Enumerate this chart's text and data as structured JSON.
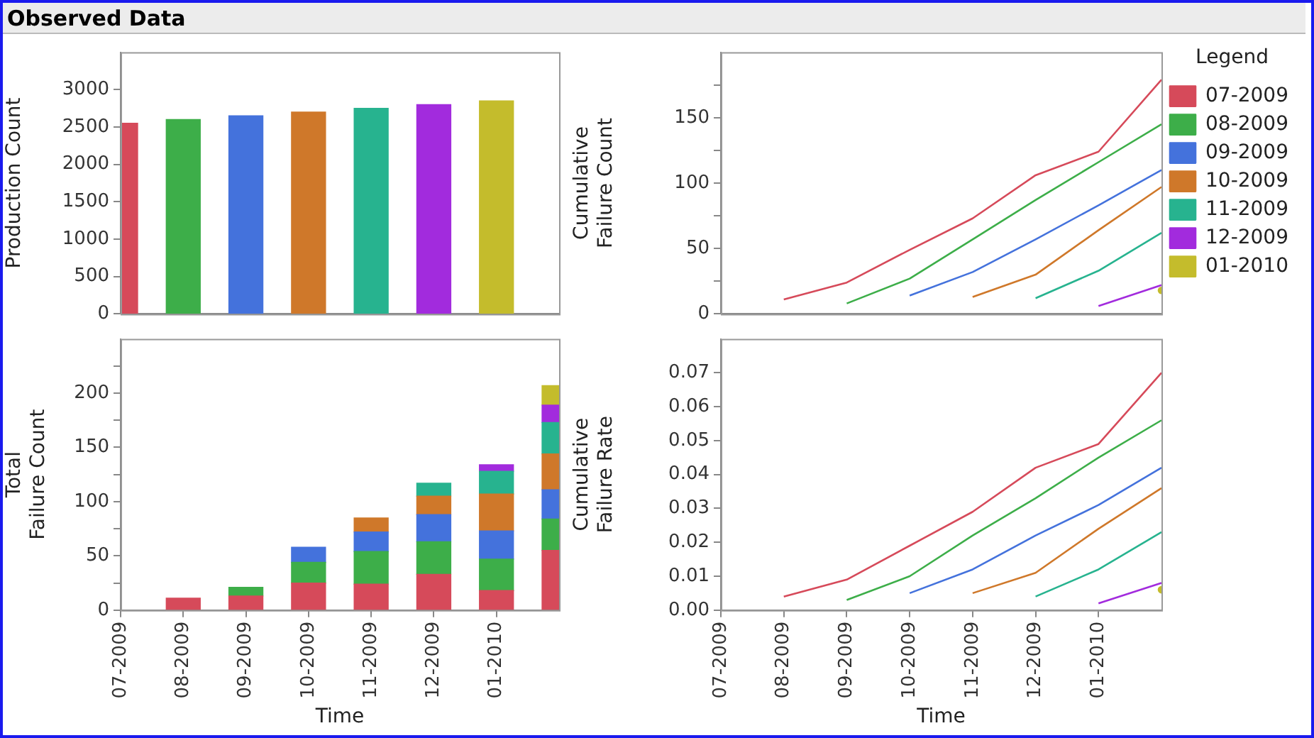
{
  "chart_data": [
    {
      "type": "bar",
      "title": "Observed Data",
      "ylabel": "Production Count",
      "x": [
        "2009-07",
        "2009-08",
        "2009-09",
        "2009-10",
        "2009-11",
        "2009-12",
        "2010-01"
      ],
      "values": [
        2550,
        2600,
        2650,
        2700,
        2750,
        2800,
        2850
      ],
      "colors": [
        "#d64a5a",
        "#3dae49",
        "#4472dc",
        "#cf782a",
        "#27b38f",
        "#a22bdd",
        "#c4bc2c"
      ],
      "ylim": [
        0,
        3500
      ],
      "yticks": [
        0,
        500,
        1000,
        1500,
        2000,
        2500,
        3000
      ],
      "xlim": [
        "2009-07",
        "2010-02"
      ],
      "tick_labels": "y"
    },
    {
      "type": "bar",
      "stacked": true,
      "xlabel": "Time",
      "ylabel": "Total\nFailure Count",
      "x": [
        "2009-08",
        "2009-09",
        "2009-10",
        "2009-11",
        "2009-12",
        "2010-01",
        "2010-02"
      ],
      "series": [
        {
          "color": "#d64a5a",
          "values": [
            11,
            13,
            25,
            24,
            33,
            18,
            55
          ]
        },
        {
          "color": "#3dae49",
          "values": [
            null,
            8,
            19,
            30,
            30,
            29,
            29
          ]
        },
        {
          "color": "#4472dc",
          "values": [
            null,
            null,
            14,
            18,
            25,
            26,
            27
          ]
        },
        {
          "color": "#cf782a",
          "values": [
            null,
            null,
            null,
            13,
            17,
            34,
            33
          ]
        },
        {
          "color": "#27b38f",
          "values": [
            null,
            null,
            null,
            null,
            12,
            21,
            29
          ]
        },
        {
          "color": "#a22bdd",
          "values": [
            null,
            null,
            null,
            null,
            null,
            6,
            16
          ]
        },
        {
          "color": "#c4bc2c",
          "values": [
            null,
            null,
            null,
            null,
            null,
            null,
            18
          ]
        }
      ],
      "ylim": [
        0,
        250
      ],
      "yticks": [
        0,
        {
          "value": 25,
          "label": null
        },
        50,
        {
          "value": 75,
          "label": null
        },
        100,
        {
          "value": 125,
          "label": null
        },
        150,
        {
          "value": 175,
          "label": null
        },
        200,
        {
          "value": 225,
          "label": null
        }
      ],
      "xlim": [
        "2009-07",
        "2010-02"
      ],
      "xticks": [
        {
          "value": "2009-07",
          "label": "07-2009"
        },
        {
          "value": "2009-08",
          "label": "08-2009"
        },
        {
          "value": "2009-09",
          "label": "09-2009"
        },
        {
          "value": "2009-10",
          "label": "10-2009"
        },
        {
          "value": "2009-11",
          "label": "11-2009"
        },
        {
          "value": "2009-12",
          "label": "12-2009"
        },
        {
          "value": "2010-01",
          "label": "01-2010"
        }
      ]
    },
    {
      "type": "line",
      "ylabel": "Cumulative\nFailure Count",
      "legend": "right",
      "legend_title": "Legend",
      "series": [
        {
          "name": "07-2009",
          "color": "#d64a5a",
          "x": [
            "2009-08",
            "2009-09",
            "2009-10",
            "2009-11",
            "2009-12",
            "2010-01",
            "2010-02"
          ],
          "values": [
            11,
            24,
            49,
            73,
            106,
            124,
            179
          ]
        },
        {
          "name": "08-2009",
          "color": "#3dae49",
          "x": [
            "2009-09",
            "2009-10",
            "2009-11",
            "2009-12",
            "2010-01",
            "2010-02"
          ],
          "values": [
            8,
            27,
            57,
            87,
            116,
            145
          ]
        },
        {
          "name": "09-2009",
          "color": "#4472dc",
          "x": [
            "2009-10",
            "2009-11",
            "2009-12",
            "2010-01",
            "2010-02"
          ],
          "values": [
            14,
            32,
            57,
            83,
            110
          ]
        },
        {
          "name": "10-2009",
          "color": "#cf782a",
          "x": [
            "2009-11",
            "2009-12",
            "2010-01",
            "2010-02"
          ],
          "values": [
            13,
            30,
            64,
            97
          ]
        },
        {
          "name": "11-2009",
          "color": "#27b38f",
          "x": [
            "2009-12",
            "2010-01",
            "2010-02"
          ],
          "values": [
            12,
            33,
            62
          ]
        },
        {
          "name": "12-2009",
          "color": "#a22bdd",
          "x": [
            "2010-01",
            "2010-02"
          ],
          "values": [
            6,
            22
          ]
        },
        {
          "name": "01-2010",
          "color": "#c4bc2c",
          "marker": "circle",
          "x": [
            "2010-02"
          ],
          "values": [
            18
          ]
        }
      ],
      "ylim": [
        0,
        200
      ],
      "yticks": [
        0,
        {
          "value": 25,
          "label": null
        },
        50,
        {
          "value": 75,
          "label": null
        },
        100,
        {
          "value": 125,
          "label": null
        },
        150,
        {
          "value": 175,
          "label": null
        }
      ],
      "xlim": [
        "2009-07",
        "2010-02"
      ],
      "tick_labels": "y"
    },
    {
      "type": "line",
      "xlabel": "Time",
      "ylabel": "Cumulative\nFailure Rate",
      "series": [
        {
          "color": "#d64a5a",
          "x": [
            "2009-08",
            "2009-09",
            "2009-10",
            "2009-11",
            "2009-12",
            "2010-01",
            "2010-02"
          ],
          "values": [
            0.004,
            0.009,
            0.019,
            0.029,
            0.042,
            0.049,
            0.07
          ]
        },
        {
          "color": "#3dae49",
          "x": [
            "2009-09",
            "2009-10",
            "2009-11",
            "2009-12",
            "2010-01",
            "2010-02"
          ],
          "values": [
            0.003,
            0.01,
            0.022,
            0.033,
            0.045,
            0.056
          ]
        },
        {
          "color": "#4472dc",
          "x": [
            "2009-10",
            "2009-11",
            "2009-12",
            "2010-01",
            "2010-02"
          ],
          "values": [
            0.005,
            0.012,
            0.022,
            0.031,
            0.042
          ]
        },
        {
          "color": "#cf782a",
          "x": [
            "2009-11",
            "2009-12",
            "2010-01",
            "2010-02"
          ],
          "values": [
            0.005,
            0.011,
            0.024,
            0.036
          ]
        },
        {
          "color": "#27b38f",
          "x": [
            "2009-12",
            "2010-01",
            "2010-02"
          ],
          "values": [
            0.004,
            0.012,
            0.023
          ]
        },
        {
          "color": "#a22bdd",
          "x": [
            "2010-01",
            "2010-02"
          ],
          "values": [
            0.002,
            0.008
          ]
        },
        {
          "color": "#c4bc2c",
          "marker": "circle",
          "x": [
            "2010-02"
          ],
          "values": [
            0.006
          ]
        }
      ],
      "ylim": [
        0,
        0.08
      ],
      "yticks": [
        {
          "value": 0,
          "label": "0.00"
        },
        {
          "value": 0.01,
          "label": "0.01"
        },
        {
          "value": 0.02,
          "label": "0.02"
        },
        {
          "value": 0.03,
          "label": "0.03"
        },
        {
          "value": 0.04,
          "label": "0.04"
        },
        {
          "value": 0.05,
          "label": "0.05"
        },
        {
          "value": 0.06,
          "label": "0.06"
        },
        {
          "value": 0.07,
          "label": "0.07"
        }
      ],
      "xlim": [
        "2009-07",
        "2010-02"
      ],
      "xticks": [
        {
          "value": "2009-07",
          "label": "07-2009"
        },
        {
          "value": "2009-08",
          "label": "08-2009"
        },
        {
          "value": "2009-09",
          "label": "09-2009"
        },
        {
          "value": "2009-10",
          "label": "10-2009"
        },
        {
          "value": "2009-11",
          "label": "11-2009"
        },
        {
          "value": "2009-12",
          "label": "12-2009"
        },
        {
          "value": "2010-01",
          "label": "01-2010"
        }
      ]
    }
  ]
}
